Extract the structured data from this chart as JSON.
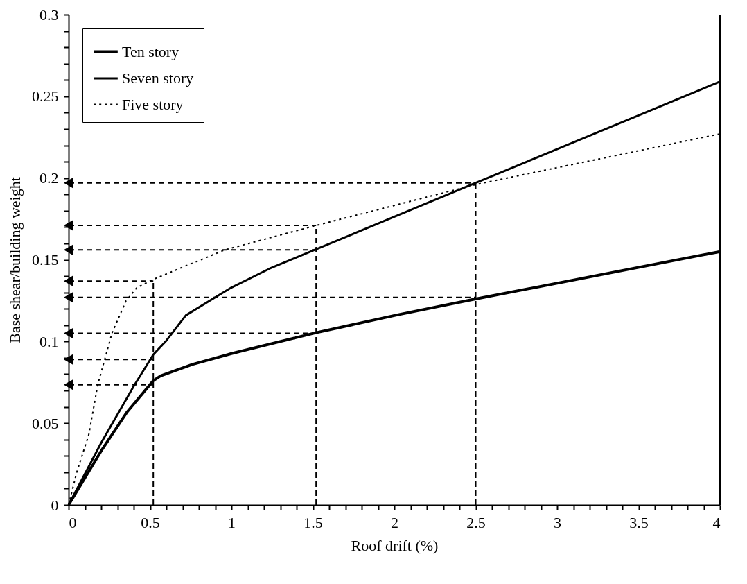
{
  "chart_data": {
    "type": "line",
    "xlabel": "Roof drift (%)",
    "ylabel": "Base shear/building weight",
    "xlim": [
      0,
      4
    ],
    "ylim": [
      0,
      0.3
    ],
    "xticks": [
      0,
      {
        "value": 0.1,
        "label": null
      },
      {
        "value": 0.2,
        "label": null
      },
      {
        "value": 0.3,
        "label": null
      },
      {
        "value": 0.4,
        "label": null
      },
      0.5,
      {
        "value": 0.6,
        "label": null
      },
      {
        "value": 0.7,
        "label": null
      },
      {
        "value": 0.8,
        "label": null
      },
      {
        "value": 0.9,
        "label": null
      },
      1,
      {
        "value": 1.1,
        "label": null
      },
      {
        "value": 1.2,
        "label": null
      },
      {
        "value": 1.3,
        "label": null
      },
      {
        "value": 1.4,
        "label": null
      },
      1.5,
      {
        "value": 1.6,
        "label": null
      },
      {
        "value": 1.7,
        "label": null
      },
      {
        "value": 1.8,
        "label": null
      },
      {
        "value": 1.9,
        "label": null
      },
      2,
      {
        "value": 2.1,
        "label": null
      },
      {
        "value": 2.2,
        "label": null
      },
      {
        "value": 2.3,
        "label": null
      },
      {
        "value": 2.4,
        "label": null
      },
      2.5,
      {
        "value": 2.6,
        "label": null
      },
      {
        "value": 2.7,
        "label": null
      },
      {
        "value": 2.8,
        "label": null
      },
      {
        "value": 2.9,
        "label": null
      },
      3,
      {
        "value": 3.1,
        "label": null
      },
      {
        "value": 3.2,
        "label": null
      },
      {
        "value": 3.3,
        "label": null
      },
      {
        "value": 3.4,
        "label": null
      },
      3.5,
      {
        "value": 3.6,
        "label": null
      },
      {
        "value": 3.7,
        "label": null
      },
      {
        "value": 3.8,
        "label": null
      },
      {
        "value": 3.9,
        "label": null
      },
      4
    ],
    "yticks": [
      0,
      {
        "value": 0.01,
        "label": null
      },
      {
        "value": 0.02,
        "label": null
      },
      {
        "value": 0.03,
        "label": null
      },
      {
        "value": 0.04,
        "label": null
      },
      0.05,
      {
        "value": 0.06,
        "label": null
      },
      {
        "value": 0.07,
        "label": null
      },
      {
        "value": 0.08,
        "label": null
      },
      {
        "value": 0.09,
        "label": null
      },
      0.1,
      {
        "value": 0.11,
        "label": null
      },
      {
        "value": 0.12,
        "label": null
      },
      {
        "value": 0.13,
        "label": null
      },
      {
        "value": 0.14,
        "label": null
      },
      0.15,
      {
        "value": 0.16,
        "label": null
      },
      {
        "value": 0.17,
        "label": null
      },
      {
        "value": 0.18,
        "label": null
      },
      {
        "value": 0.19,
        "label": null
      },
      0.2,
      {
        "value": 0.21,
        "label": null
      },
      {
        "value": 0.22,
        "label": null
      },
      {
        "value": 0.23,
        "label": null
      },
      {
        "value": 0.24,
        "label": null
      },
      0.25,
      {
        "value": 0.26,
        "label": null
      },
      {
        "value": 0.27,
        "label": null
      },
      {
        "value": 0.28,
        "label": null
      },
      {
        "value": 0.29,
        "label": null
      },
      0.3
    ],
    "grid": false,
    "legend": "top left",
    "series": [
      {
        "name": "Ten story",
        "color": "#000000",
        "line_style": "solid",
        "x": [
          0,
          0.2,
          0.36,
          0.52,
          0.565,
          0.76,
          1.0,
          1.52,
          2.02,
          2.5,
          4
        ],
        "values": [
          0,
          0.033,
          0.057,
          0.076,
          0.079,
          0.086,
          0.0926,
          0.1054,
          0.1163,
          0.126,
          0.155
        ]
      },
      {
        "name": "Seven story",
        "color": "#000000",
        "line_style": "solid",
        "x": [
          0,
          0.2,
          0.4,
          0.52,
          0.6,
          0.72,
          0.9,
          1.0,
          1.235,
          1.52,
          2.5,
          4
        ],
        "values": [
          0,
          0.038,
          0.0727,
          0.092,
          0.1005,
          0.116,
          0.127,
          0.133,
          0.1446,
          0.1564,
          0.197,
          0.259
        ]
      },
      {
        "name": "Five story",
        "color": "#000000",
        "line_style": "dotted",
        "x": [
          0,
          0.05,
          0.124,
          0.18,
          0.266,
          0.353,
          0.42,
          0.52,
          0.958,
          1.52,
          2.5,
          4
        ],
        "values": [
          0,
          0.02,
          0.043,
          0.074,
          0.105,
          0.125,
          0.133,
          0.138,
          0.156,
          0.171,
          0.196,
          0.227
        ]
      },
      {
        "color": "#000000",
        "line_style": "dashed",
        "marker": "triangle",
        "x": [
          0,
          0.52
        ],
        "values": [
          0.0735,
          0.0735
        ]
      },
      {
        "color": "#000000",
        "line_style": "dashed",
        "marker": "triangle",
        "x": [
          0,
          0.52
        ],
        "values": [
          0.089,
          0.089
        ]
      },
      {
        "color": "#000000",
        "line_style": "dashed",
        "marker": "triangle",
        "x": [
          0,
          1.52
        ],
        "values": [
          0.105,
          0.105
        ]
      },
      {
        "color": "#000000",
        "line_style": "dashed",
        "marker": "triangle",
        "x": [
          0,
          2.5
        ],
        "values": [
          0.127,
          0.127
        ]
      },
      {
        "color": "#000000",
        "line_style": "dashed",
        "marker": "triangle",
        "x": [
          0,
          0.52
        ],
        "values": [
          0.137,
          0.137
        ]
      },
      {
        "color": "#000000",
        "line_style": "dashed",
        "marker": "triangle",
        "x": [
          0,
          1.52
        ],
        "values": [
          0.156,
          0.156
        ]
      },
      {
        "color": "#000000",
        "line_style": "dashed",
        "marker": "triangle",
        "x": [
          0,
          1.52
        ],
        "values": [
          0.171,
          0.171
        ]
      },
      {
        "color": "#000000",
        "line_style": "dashed",
        "marker": "triangle",
        "x": [
          0,
          2.5
        ],
        "values": [
          0.197,
          0.197
        ]
      },
      {
        "color": "#000000",
        "line_style": "dashed",
        "marker": "none",
        "x": [
          0.52,
          0.52
        ],
        "values": [
          0,
          0.137
        ]
      },
      {
        "color": "#000000",
        "line_style": "dashed",
        "marker": "none",
        "x": [
          1.52,
          1.52
        ],
        "values": [
          0,
          0.171
        ]
      },
      {
        "color": "#000000",
        "line_style": "dashed",
        "marker": "none",
        "x": [
          2.5,
          2.5
        ],
        "values": [
          0,
          0.197
        ]
      }
    ]
  }
}
